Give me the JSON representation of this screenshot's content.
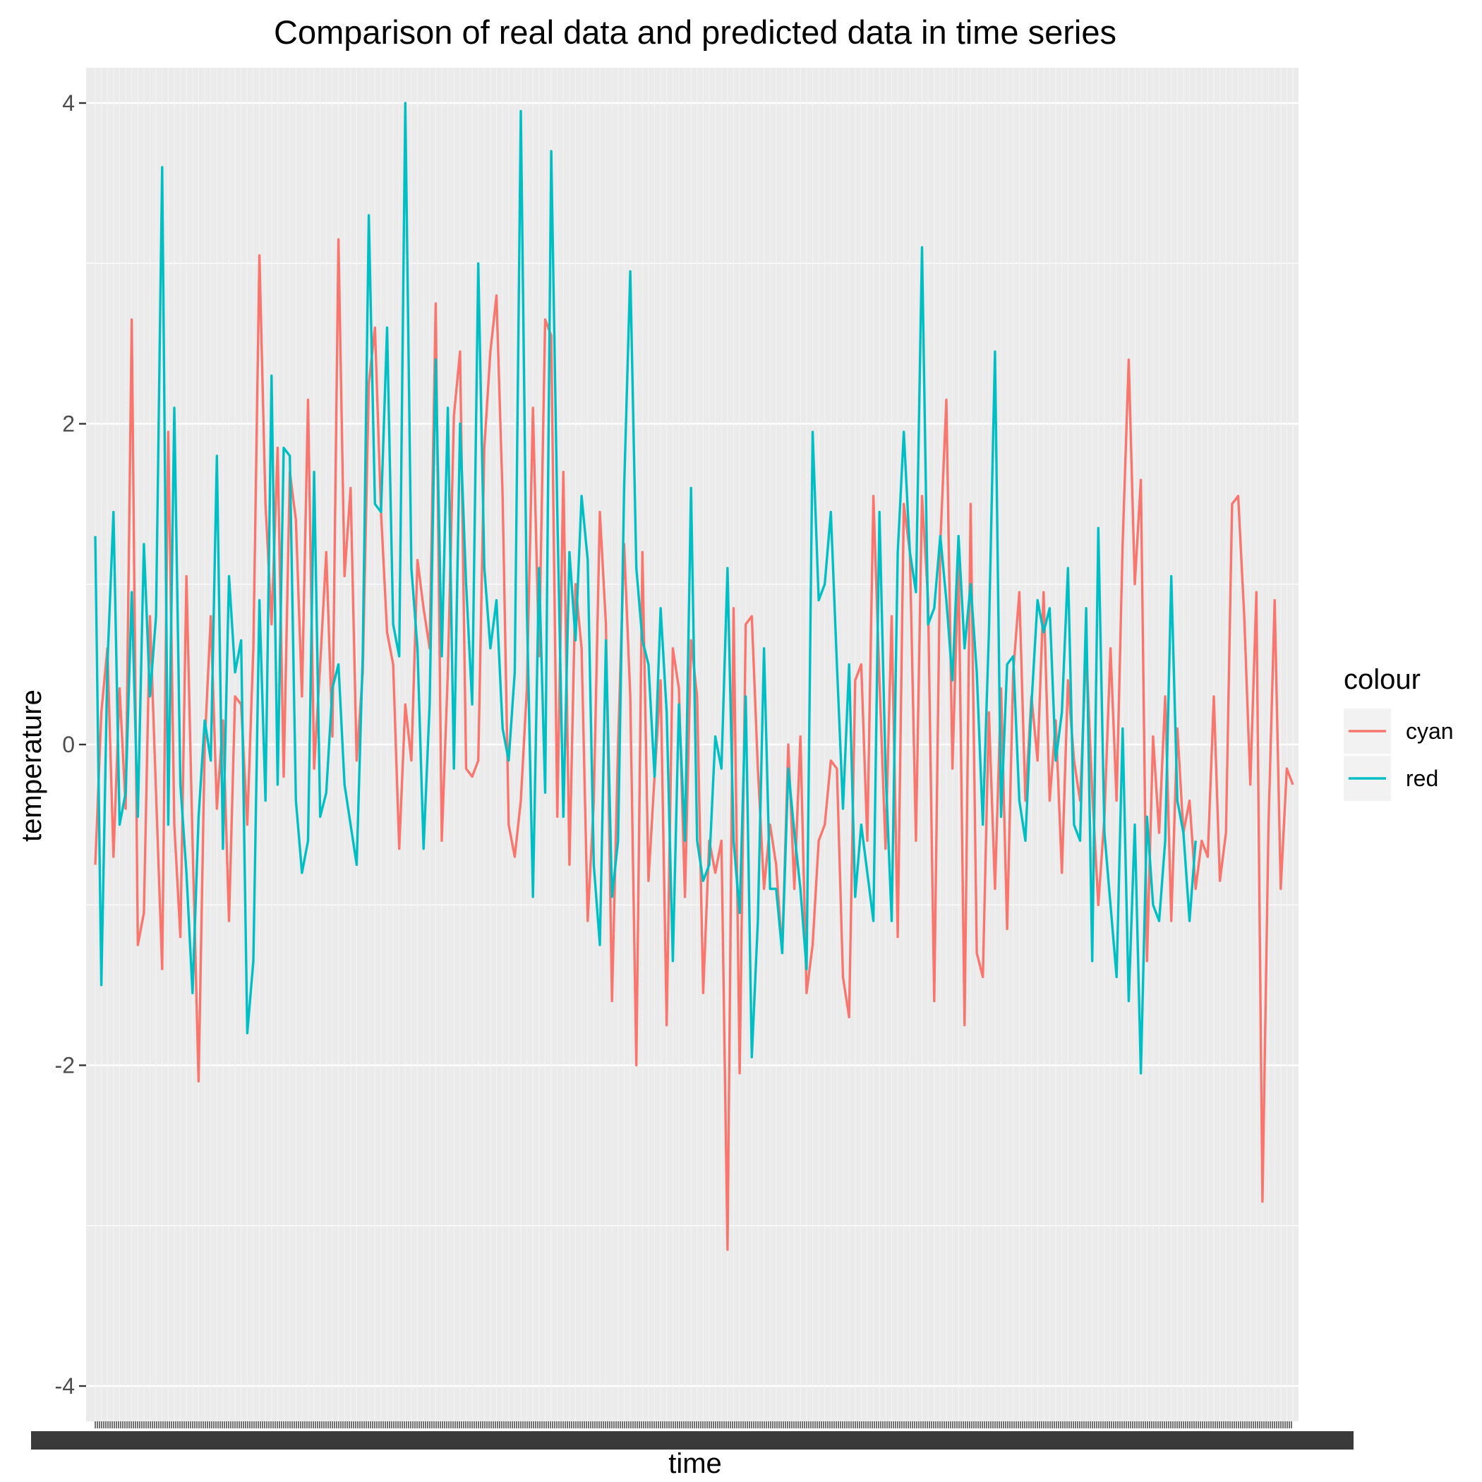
{
  "chart_data": {
    "type": "line",
    "title": "Comparison of real data and predicted data in time series",
    "xlabel": "time",
    "ylabel": "temperature",
    "ylim": [
      -4.0,
      4.0
    ],
    "yticks": [
      "-4",
      "-2",
      "0",
      "2",
      "4"
    ],
    "grid": true,
    "legend_position": "right",
    "legend_title": "colour",
    "background_color": "#ebebeb",
    "x_axis_note": "hundreds of overlapping date tick labels (illegible)",
    "series": [
      {
        "name": "cyan",
        "color": "#f8766d",
        "values": [
          -0.75,
          0.2,
          0.6,
          -0.7,
          0.35,
          -0.4,
          2.65,
          -1.25,
          -1.05,
          0.8,
          -0.3,
          -1.4,
          1.95,
          -0.5,
          -1.2,
          1.05,
          -0.6,
          -2.1,
          0.0,
          0.8,
          -0.4,
          0.15,
          -1.1,
          0.3,
          0.25,
          -0.5,
          0.6,
          3.05,
          1.5,
          0.75,
          1.85,
          -0.2,
          1.7,
          1.4,
          0.3,
          2.15,
          -0.15,
          0.5,
          1.2,
          0.05,
          3.15,
          1.05,
          1.6,
          -0.1,
          0.45,
          2.25,
          2.6,
          1.45,
          0.7,
          0.5,
          -0.65,
          0.25,
          -0.1,
          1.15,
          0.85,
          0.6,
          2.75,
          -0.6,
          0.45,
          2.05,
          2.45,
          -0.15,
          -0.2,
          -0.1,
          1.85,
          2.45,
          2.8,
          1.55,
          -0.5,
          -0.7,
          -0.35,
          0.35,
          2.1,
          0.55,
          2.65,
          2.55,
          -0.45,
          1.7,
          -0.75,
          1.0,
          0.6,
          -1.1,
          -0.35,
          1.45,
          0.75,
          -1.6,
          0.0,
          1.25,
          0.3,
          -2.0,
          1.2,
          -0.85,
          -0.2,
          0.4,
          -1.75,
          0.6,
          0.35,
          -0.95,
          0.65,
          0.3,
          -1.55,
          -0.6,
          -0.8,
          -0.6,
          -3.15,
          0.85,
          -2.05,
          0.75,
          0.8,
          -0.15,
          -0.9,
          -0.5,
          -0.75,
          -1.3,
          0.0,
          -0.9,
          0.05,
          -1.55,
          -1.25,
          -0.6,
          -0.5,
          -0.1,
          -0.15,
          -1.45,
          -1.7,
          0.4,
          0.5,
          -0.6,
          1.55,
          0.4,
          -0.65,
          0.8,
          -1.2,
          1.5,
          1.2,
          -0.6,
          1.55,
          0.9,
          -1.6,
          1.25,
          2.15,
          -0.15,
          1.15,
          -1.75,
          1.5,
          -1.3,
          -1.45,
          0.2,
          -0.9,
          0.35,
          -1.15,
          0.45,
          0.95,
          -0.35,
          0.3,
          -0.1,
          0.95,
          -0.35,
          0.15,
          -0.8,
          0.4,
          -0.1,
          -0.35,
          0.6,
          -0.3,
          -1.0,
          -0.45,
          0.6,
          -0.35,
          1.25,
          2.4,
          1.0,
          1.65,
          -1.35,
          0.05,
          -0.55,
          0.3,
          -1.1,
          0.1,
          -0.55,
          -0.35,
          -0.9,
          -0.6,
          -0.7,
          0.3,
          -0.85,
          -0.55,
          1.5,
          1.55,
          0.8,
          -0.25,
          0.95,
          -2.85,
          -0.5,
          0.9,
          -0.9,
          -0.15,
          -0.25
        ]
      },
      {
        "name": "red",
        "color": "#00bfc4",
        "values": [
          1.3,
          -1.5,
          0.5,
          1.45,
          -0.5,
          -0.3,
          0.95,
          -0.45,
          1.25,
          0.3,
          0.8,
          3.6,
          -0.5,
          2.1,
          -0.25,
          -0.8,
          -1.55,
          -0.45,
          0.15,
          -0.1,
          1.8,
          -0.65,
          1.05,
          0.45,
          0.65,
          -1.8,
          -1.35,
          0.9,
          -0.35,
          2.3,
          -0.25,
          1.85,
          1.8,
          -0.35,
          -0.8,
          -0.6,
          1.7,
          -0.45,
          -0.3,
          0.35,
          0.5,
          -0.25,
          -0.5,
          -0.75,
          0.55,
          3.3,
          1.5,
          1.45,
          2.6,
          0.75,
          0.55,
          4.0,
          1.1,
          0.6,
          -0.65,
          0.25,
          2.4,
          0.55,
          2.1,
          -0.15,
          2.0,
          1.0,
          0.25,
          3.0,
          1.1,
          0.6,
          0.9,
          0.1,
          -0.1,
          0.45,
          3.95,
          0.85,
          -0.95,
          1.1,
          -0.3,
          3.7,
          1.45,
          -0.45,
          1.2,
          0.65,
          1.55,
          1.15,
          -0.75,
          -1.25,
          0.65,
          -0.95,
          -0.6,
          1.6,
          2.95,
          1.1,
          0.65,
          0.5,
          -0.2,
          0.85,
          0.2,
          -1.35,
          0.25,
          -0.6,
          1.6,
          -0.6,
          -0.85,
          -0.75,
          0.05,
          -0.15,
          1.1,
          -0.6,
          -1.05,
          0.3,
          -1.95,
          -1.1,
          0.6,
          -0.9,
          -0.9,
          -1.3,
          -0.15,
          -0.55,
          -0.9,
          -1.4,
          1.95,
          0.9,
          1.0,
          1.45,
          0.5,
          -0.4,
          0.5,
          -0.95,
          -0.5,
          -0.8,
          -1.1,
          1.45,
          -0.15,
          -1.1,
          1.2,
          1.95,
          1.2,
          0.95,
          3.1,
          0.75,
          0.85,
          1.3,
          0.9,
          0.4,
          1.3,
          0.6,
          1.0,
          0.45,
          -0.5,
          0.7,
          2.45,
          -0.45,
          0.5,
          0.55,
          -0.35,
          -0.6,
          0.25,
          0.9,
          0.7,
          0.85,
          -0.1,
          0.2,
          1.1,
          -0.5,
          -0.6,
          0.85,
          -1.35,
          1.35,
          -0.55,
          -1.0,
          -1.45,
          0.1,
          -1.6,
          -0.5,
          -2.05,
          -0.45,
          -1.0,
          -1.1,
          -0.6,
          1.05,
          -0.35,
          -0.55,
          -1.1,
          -0.6
        ]
      }
    ]
  }
}
